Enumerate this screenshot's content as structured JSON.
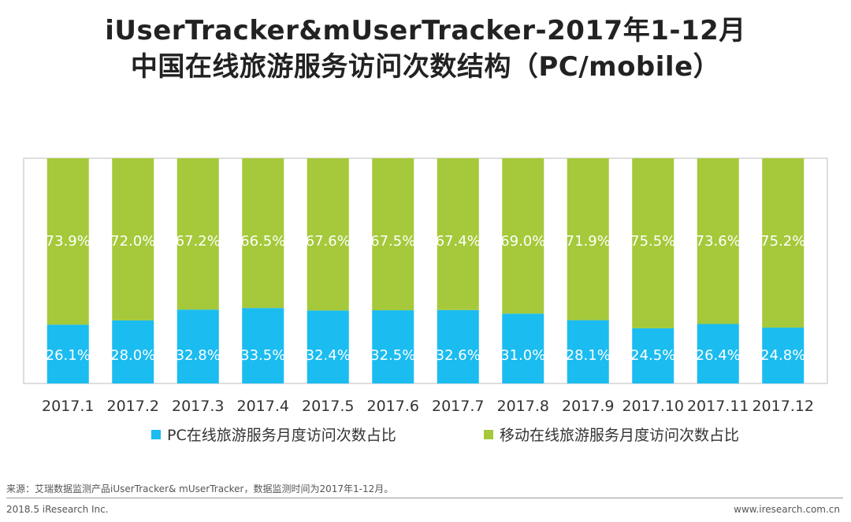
{
  "title_line1": "iUserTracker&mUserTracker-2017年1-12月",
  "title_line2": "中国在线旅游服务访问次数结构（PC/mobile）",
  "legend": [
    {
      "label": "PC在线旅游服务月度访问次数占比",
      "color": "#1bbcf0"
    },
    {
      "label": "移动在线旅游服务月度访问次数占比",
      "color": "#a5c93a"
    }
  ],
  "source": "来源：艾瑞数据监测产品iUserTracker& mUserTracker，数据监测时间为2017年1-12月。",
  "footer_left": "2018.5 iResearch Inc.",
  "footer_right": "www.iresearch.com.cn",
  "chart_data": {
    "type": "bar",
    "stacked": true,
    "categories": [
      "2017.1",
      "2017.2",
      "2017.3",
      "2017.4",
      "2017.5",
      "2017.6",
      "2017.7",
      "2017.8",
      "2017.9",
      "2017.10",
      "2017.11",
      "2017.12"
    ],
    "series": [
      {
        "name": "PC在线旅游服务月度访问次数占比",
        "color": "#1bbcf0",
        "values": [
          26.1,
          28.0,
          32.8,
          33.5,
          32.4,
          32.5,
          32.6,
          31.0,
          28.1,
          24.5,
          26.4,
          24.8
        ],
        "labels": [
          "26.1%",
          "28.0%",
          "32.8%",
          "33.5%",
          "32.4%",
          "32.5%",
          "32.6%",
          "31.0%",
          "28.1%",
          "24.5%",
          "26.4%",
          "24.8%"
        ]
      },
      {
        "name": "移动在线旅游服务月度访问次数占比",
        "color": "#a5c93a",
        "values": [
          73.9,
          72.0,
          67.2,
          66.5,
          67.6,
          67.5,
          67.4,
          69.0,
          71.9,
          75.5,
          73.6,
          75.2
        ],
        "labels": [
          "73.9%",
          "72.0%",
          "67.2%",
          "66.5%",
          "67.6%",
          "67.5%",
          "67.4%",
          "69.0%",
          "71.9%",
          "75.5%",
          "73.6%",
          "75.2%"
        ]
      }
    ],
    "ylim": [
      0,
      100
    ],
    "grid": false,
    "legend_position": "bottom"
  }
}
